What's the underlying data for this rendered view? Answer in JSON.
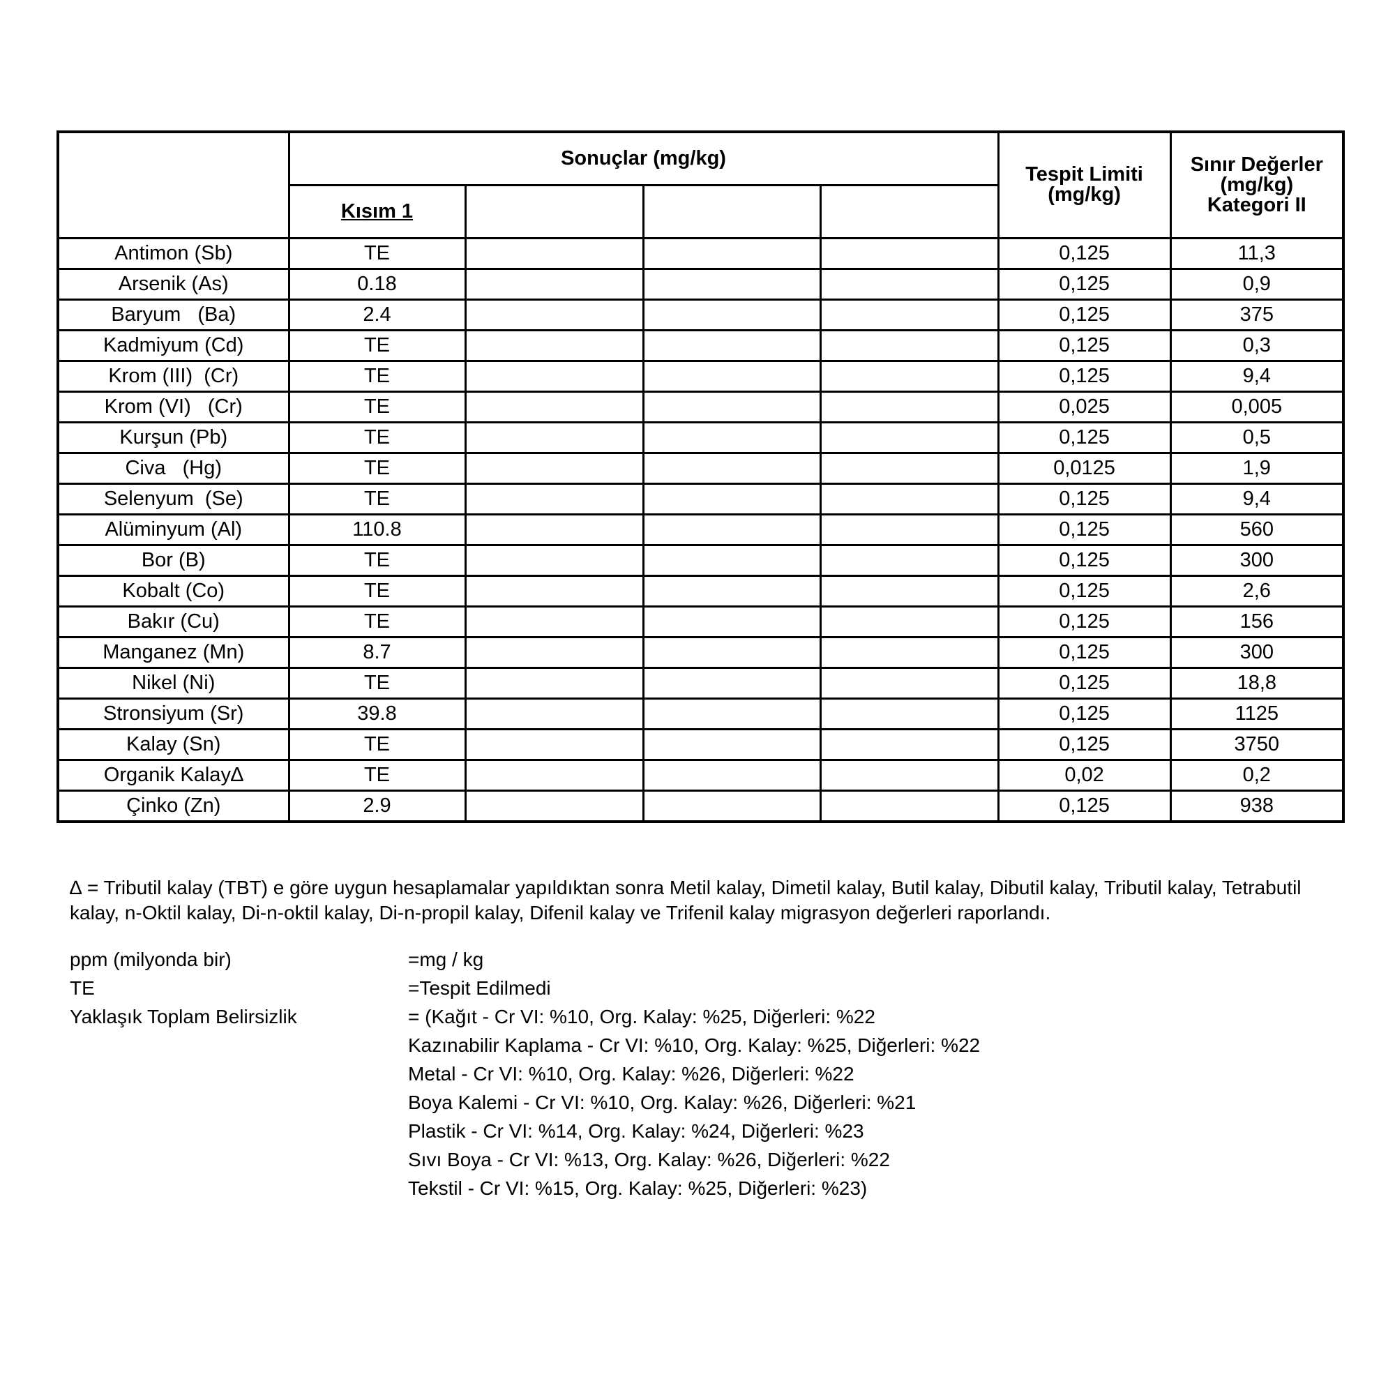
{
  "table": {
    "header": {
      "results": "Sonuçlar (mg/kg)",
      "part1": "Kısım 1",
      "detection_limit": "Tespit Limiti (mg/kg)",
      "limit_line1": "Sınır Değerler",
      "limit_line2": "(mg/kg)",
      "limit_line3": "Kategori II"
    },
    "rows": [
      {
        "element": "Antimon (Sb)",
        "result": "TE",
        "detection": "0,125",
        "limit": "11,3"
      },
      {
        "element": "Arsenik (As)",
        "result": "0.18",
        "detection": "0,125",
        "limit": "0,9"
      },
      {
        "element": "Baryum   (Ba)",
        "result": "2.4",
        "detection": "0,125",
        "limit": "375"
      },
      {
        "element": "Kadmiyum (Cd)",
        "result": "TE",
        "detection": "0,125",
        "limit": "0,3"
      },
      {
        "element": "Krom (III)  (Cr)",
        "result": "TE",
        "detection": "0,125",
        "limit": "9,4"
      },
      {
        "element": "Krom (VI)   (Cr)",
        "result": "TE",
        "detection": "0,025",
        "limit": "0,005"
      },
      {
        "element": "Kurşun (Pb)",
        "result": "TE",
        "detection": "0,125",
        "limit": "0,5"
      },
      {
        "element": "Civa   (Hg)",
        "result": "TE",
        "detection": "0,0125",
        "limit": "1,9"
      },
      {
        "element": "Selenyum  (Se)",
        "result": "TE",
        "detection": "0,125",
        "limit": "9,4"
      },
      {
        "element": "Alüminyum (Al)",
        "result": "110.8",
        "detection": "0,125",
        "limit": "560"
      },
      {
        "element": "Bor (B)",
        "result": "TE",
        "detection": "0,125",
        "limit": "300"
      },
      {
        "element": "Kobalt (Co)",
        "result": "TE",
        "detection": "0,125",
        "limit": "2,6"
      },
      {
        "element": "Bakır (Cu)",
        "result": "TE",
        "detection": "0,125",
        "limit": "156"
      },
      {
        "element": "Manganez (Mn)",
        "result": "8.7",
        "detection": "0,125",
        "limit": "300"
      },
      {
        "element": "Nikel (Ni)",
        "result": "TE",
        "detection": "0,125",
        "limit": "18,8"
      },
      {
        "element": "Stronsiyum (Sr)",
        "result": "39.8",
        "detection": "0,125",
        "limit": "1125"
      },
      {
        "element": "Kalay (Sn)",
        "result": "TE",
        "detection": "0,125",
        "limit": "3750"
      },
      {
        "element": "Organik Kalay∆",
        "result": "TE",
        "detection": "0,02",
        "limit": "0,2"
      },
      {
        "element": "Çinko (Zn)",
        "result": "2.9",
        "detection": "0,125",
        "limit": "938"
      }
    ]
  },
  "footnote": "∆ = Tributil kalay (TBT) e göre uygun hesaplamalar yapıldıktan sonra Metil kalay, Dimetil kalay, Butil kalay, Dibutil kalay, Tributil kalay, Tetrabutil kalay, n-Oktil kalay, Di-n-oktil kalay, Di-n-propil kalay, Difenil kalay ve Trifenil kalay migrasyon değerleri raporlandı.",
  "legend": [
    {
      "key": "ppm (milyonda bir)",
      "value": "=mg / kg"
    },
    {
      "key": "TE",
      "value": "=Tespit Edilmedi"
    },
    {
      "key": "Yaklaşık Toplam Belirsizlik",
      "value": "= (Kağıt - Cr VI: %10, Org. Kalay: %25, Diğerleri: %22"
    },
    {
      "key": "",
      "value": "Kazınabilir Kaplama - Cr VI: %10, Org. Kalay: %25, Diğerleri: %22"
    },
    {
      "key": "",
      "value": "Metal - Cr VI: %10, Org. Kalay: %26, Diğerleri: %22"
    },
    {
      "key": "",
      "value": "Boya Kalemi - Cr VI: %10, Org. Kalay: %26, Diğerleri: %21"
    },
    {
      "key": "",
      "value": "Plastik - Cr VI: %14, Org. Kalay: %24, Diğerleri: %23"
    },
    {
      "key": "",
      "value": "Sıvı Boya - Cr VI: %13, Org. Kalay: %26, Diğerleri: %22"
    },
    {
      "key": "",
      "value": "Tekstil - Cr VI: %15, Org. Kalay: %25, Diğerleri: %23)"
    }
  ]
}
